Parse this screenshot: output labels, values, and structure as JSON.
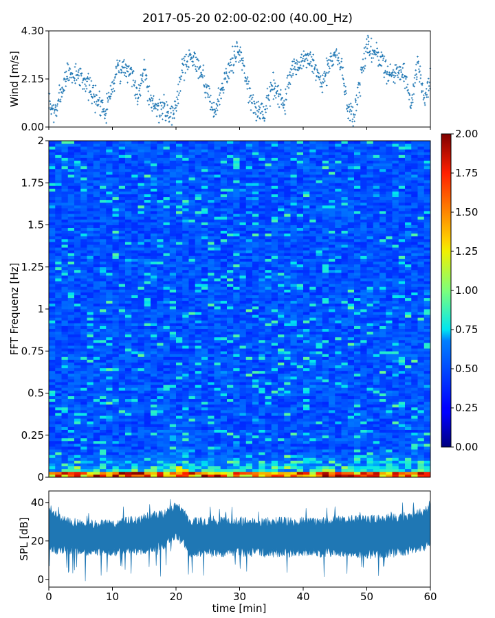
{
  "chart_data": [
    {
      "type": "scatter",
      "title": "2017-05-20 02:00-02:00 (40.00_Hz)",
      "ylabel": "Wind [m/s]",
      "xlim": [
        0,
        60
      ],
      "ylim": [
        0,
        4.3
      ],
      "yticks": [
        "0.00",
        "2.15",
        "4.30"
      ],
      "marker": "+",
      "color": "#1f77b4",
      "profile": {
        "t": [
          0,
          1,
          2,
          3,
          4,
          5,
          6,
          7,
          8,
          9,
          10,
          11,
          12,
          13,
          14,
          15,
          16,
          17,
          18,
          19,
          20,
          21,
          22,
          23,
          24,
          25,
          26,
          27,
          28,
          29,
          30,
          31,
          32,
          33,
          34,
          35,
          36,
          37,
          38,
          39,
          40,
          41,
          42,
          43,
          44,
          45,
          46,
          47,
          48,
          49,
          50,
          51,
          52,
          53,
          54,
          55,
          56,
          57,
          58,
          59,
          60
        ],
        "mean": [
          1.0,
          0.6,
          1.6,
          2.4,
          2.3,
          2.3,
          2.0,
          1.4,
          1.1,
          0.8,
          1.9,
          2.6,
          2.7,
          2.5,
          1.3,
          2.8,
          1.0,
          0.9,
          0.8,
          0.6,
          1.0,
          2.6,
          3.1,
          3.0,
          2.5,
          1.5,
          0.6,
          1.5,
          2.4,
          3.0,
          3.5,
          2.3,
          1.1,
          0.6,
          0.7,
          1.9,
          1.6,
          1.0,
          2.4,
          2.8,
          2.9,
          3.0,
          2.6,
          1.8,
          2.8,
          3.3,
          2.8,
          0.8,
          0.5,
          2.0,
          3.6,
          3.3,
          3.1,
          2.6,
          2.3,
          2.4,
          2.2,
          1.0,
          2.8,
          1.3,
          2.2
        ],
        "spread": 0.45
      }
    },
    {
      "type": "heatmap",
      "ylabel": "FFT Frequenz [Hz]",
      "xlim": [
        0,
        60
      ],
      "ylim": [
        0,
        2
      ],
      "yticks": [
        "0",
        "0.25",
        "0.5",
        "0.75",
        "1",
        "1.25",
        "1.5",
        "1.75",
        "2"
      ],
      "colormap": "jet",
      "colorbar": {
        "range": [
          0,
          2
        ],
        "ticks": [
          "0.00",
          "0.25",
          "0.50",
          "0.75",
          "1.00",
          "1.25",
          "1.50",
          "1.75",
          "2.00"
        ]
      }
    },
    {
      "type": "area",
      "ylabel": "SPL [dB]",
      "xlabel": "time [min]",
      "xlim": [
        0,
        60
      ],
      "ylim": [
        -4,
        46
      ],
      "yticks": [
        "0",
        "20",
        "40"
      ],
      "xticks": [
        "0",
        "10",
        "20",
        "30",
        "40",
        "50",
        "60"
      ],
      "color": "#1f77b4",
      "envelope": {
        "t": [
          0,
          2,
          5,
          10,
          14,
          16,
          18,
          19,
          20,
          21,
          22,
          25,
          30,
          35,
          40,
          45,
          50,
          55,
          58,
          60
        ],
        "low": [
          15,
          15,
          15,
          14,
          15,
          16,
          18,
          20,
          22,
          20,
          14,
          14,
          14,
          14,
          14,
          14,
          13,
          14,
          16,
          18
        ],
        "high": [
          38,
          31,
          29,
          29,
          31,
          33,
          34,
          36,
          38,
          36,
          30,
          30,
          30,
          30,
          30,
          31,
          31,
          32,
          34,
          37
        ]
      }
    }
  ]
}
